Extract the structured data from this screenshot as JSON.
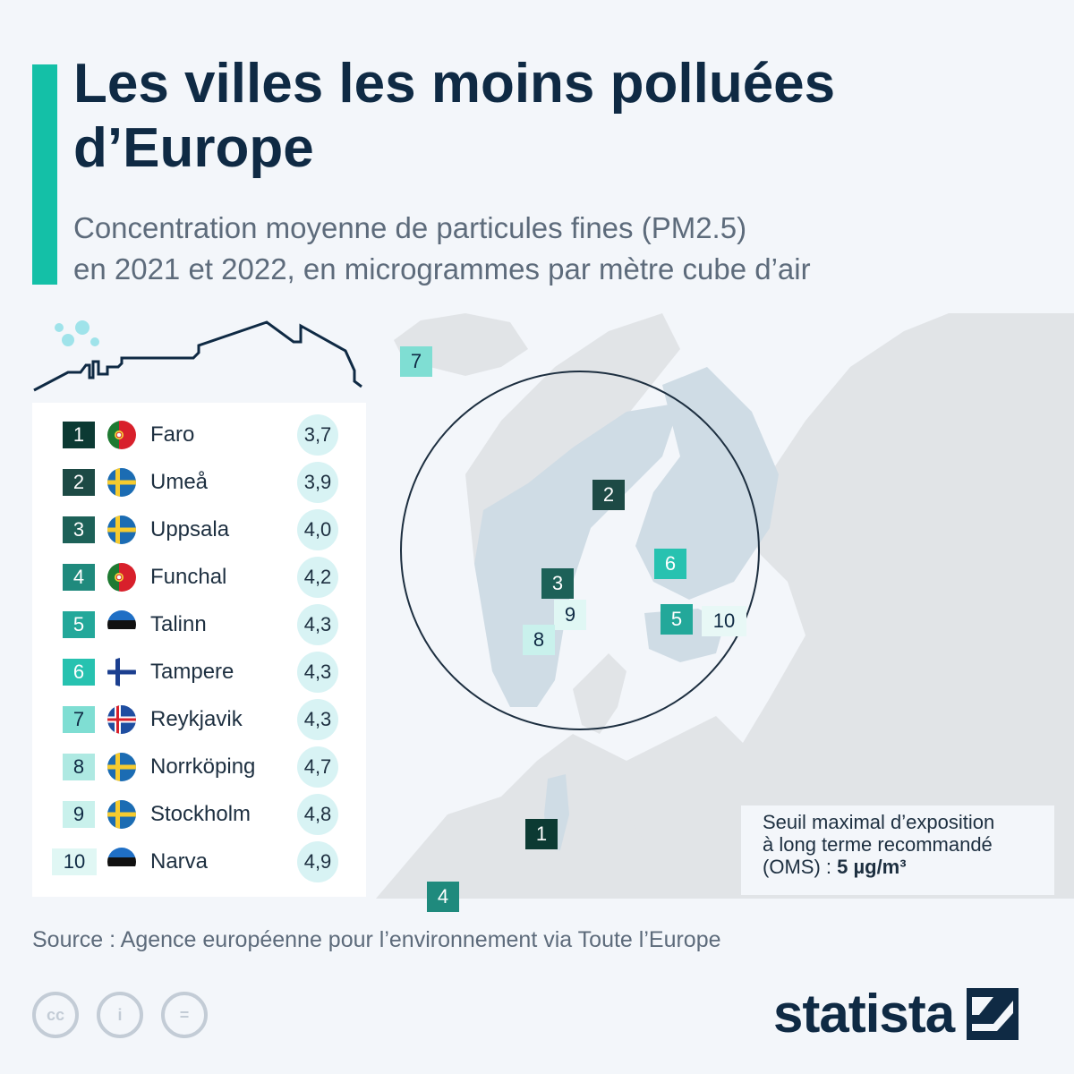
{
  "title": "Les villes les moins polluées d’Europe",
  "subtitle_line1": "Concentration moyenne de particules fines (PM2.5)",
  "subtitle_line2": "en 2021 et 2022, en microgrammes par mètre cube d’air",
  "map": {
    "type": "reference map of Europe with zoom circle on Scandinavia",
    "land_color": "#e1e4e7",
    "highlight_color": "#cfdce5",
    "sea_color": "#f3f6fa"
  },
  "ranking": [
    {
      "rank": "1",
      "city": "Faro",
      "value": "3,7",
      "flag": "portugal-flag-icon",
      "badge_color": "#0c3a33",
      "badge_text": "#ffffff"
    },
    {
      "rank": "2",
      "city": "Umeå",
      "value": "3,9",
      "flag": "sweden-flag-icon",
      "badge_color": "#1d4a45",
      "badge_text": "#ffffff"
    },
    {
      "rank": "3",
      "city": "Uppsala",
      "value": "4,0",
      "flag": "sweden-flag-icon",
      "badge_color": "#1d6158",
      "badge_text": "#ffffff"
    },
    {
      "rank": "4",
      "city": "Funchal",
      "value": "4,2",
      "flag": "portugal-flag-icon",
      "badge_color": "#1f8a7d",
      "badge_text": "#ffffff"
    },
    {
      "rank": "5",
      "city": "Talinn",
      "value": "4,3",
      "flag": "estonia-flag-icon",
      "badge_color": "#23a89a",
      "badge_text": "#ffffff"
    },
    {
      "rank": "6",
      "city": "Tampere",
      "value": "4,3",
      "flag": "finland-flag-icon",
      "badge_color": "#27c2b0",
      "badge_text": "#ffffff"
    },
    {
      "rank": "7",
      "city": "Reykjavik",
      "value": "4,3",
      "flag": "iceland-flag-icon",
      "badge_color": "#7fded3",
      "badge_text": "#0f2a44"
    },
    {
      "rank": "8",
      "city": "Norrköping",
      "value": "4,7",
      "flag": "sweden-flag-icon",
      "badge_color": "#aee9e2",
      "badge_text": "#0f2a44"
    },
    {
      "rank": "9",
      "city": "Stockholm",
      "value": "4,8",
      "flag": "sweden-flag-icon",
      "badge_color": "#c9f1ec",
      "badge_text": "#0f2a44"
    },
    {
      "rank": "10",
      "city": "Narva",
      "value": "4,9",
      "flag": "estonia-flag-icon",
      "badge_color": "#e0f7f4",
      "badge_text": "#0f2a44"
    }
  ],
  "markers": [
    {
      "label": "7",
      "city": "Reykjavik"
    },
    {
      "label": "2",
      "city": "Umeå"
    },
    {
      "label": "6",
      "city": "Tampere"
    },
    {
      "label": "3",
      "city": "Uppsala"
    },
    {
      "label": "9",
      "city": "Stockholm"
    },
    {
      "label": "8",
      "city": "Norrköping"
    },
    {
      "label": "5",
      "city": "Talinn"
    },
    {
      "label": "10",
      "city": "Narva"
    },
    {
      "label": "1",
      "city": "Faro"
    },
    {
      "label": "4",
      "city": "Funchal"
    }
  ],
  "note": {
    "line1": "Seuil maximal d’exposition",
    "line2": "à long terme recommandé",
    "line3_prefix": "(OMS) : ",
    "line3_value": "5 µg/m³"
  },
  "source": "Source : Agence européenne pour l’environnement via Toute l’Europe",
  "license_icons": [
    "cc-icon",
    "attribution-icon",
    "no-derivatives-icon"
  ],
  "license_glyphs": [
    "cc",
    "i",
    "="
  ],
  "brand": "statista",
  "colors": {
    "accent": "#14c0a7",
    "title": "#0f2a44",
    "value_bubble": "#d8f3f4"
  }
}
